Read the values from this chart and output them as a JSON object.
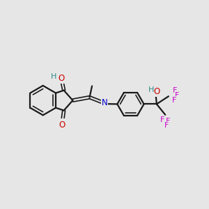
{
  "background_color": "#e6e6e6",
  "bond_color": "#1a1a1a",
  "o_color": "#cc0000",
  "n_color": "#0000cc",
  "f_color": "#cc00cc",
  "h_color": "#2e8b8b",
  "figsize": [
    3.0,
    3.0
  ],
  "dpi": 100,
  "xlim": [
    0,
    10
  ],
  "ylim": [
    1,
    9
  ]
}
